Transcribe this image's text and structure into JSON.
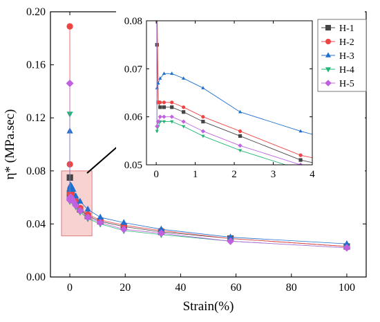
{
  "chart_data": [
    {
      "type": "line",
      "xlabel": "Strain(%)",
      "ylabel": "η* (MPa.sec)",
      "xlim": [
        -7,
        107
      ],
      "ylim": [
        0.0,
        0.2
      ],
      "x_ticks": [
        0,
        20,
        40,
        60,
        80,
        100
      ],
      "x_tick_labels": [
        "0",
        "20",
        "40",
        "60",
        "80",
        "100"
      ],
      "y_ticks": [
        0.0,
        0.04,
        0.08,
        0.12,
        0.16,
        0.2
      ],
      "y_tick_labels": [
        "0.00",
        "0.04",
        "0.08",
        "0.12",
        "0.16",
        "0.20"
      ],
      "grid": false,
      "series": [
        {
          "name": "H-1",
          "color": "#444444",
          "marker": "square",
          "points": [
            [
              0.02,
              0.075
            ],
            [
              0.05,
              0.063
            ],
            [
              0.1,
              0.062
            ],
            [
              0.2,
              0.062
            ],
            [
              0.4,
              0.062
            ],
            [
              0.7,
              0.061
            ],
            [
              1.2,
              0.059
            ],
            [
              2.15,
              0.056
            ],
            [
              3.7,
              0.051
            ],
            [
              6.5,
              0.046
            ],
            [
              11,
              0.042
            ],
            [
              19.5,
              0.038
            ],
            [
              33,
              0.034
            ],
            [
              58,
              0.029
            ],
            [
              100,
              0.023
            ]
          ]
        },
        {
          "name": "H-2",
          "color": "#ef4444",
          "marker": "circle",
          "points": [
            [
              0.0,
              0.189
            ],
            [
              0.02,
              0.085
            ],
            [
              0.05,
              0.063
            ],
            [
              0.1,
              0.063
            ],
            [
              0.2,
              0.063
            ],
            [
              0.4,
              0.063
            ],
            [
              0.7,
              0.062
            ],
            [
              1.2,
              0.06
            ],
            [
              2.15,
              0.057
            ],
            [
              3.7,
              0.052
            ],
            [
              6.5,
              0.047
            ],
            [
              11,
              0.043
            ],
            [
              19.5,
              0.039
            ],
            [
              33,
              0.035
            ],
            [
              58,
              0.029
            ],
            [
              100,
              0.023
            ]
          ]
        },
        {
          "name": "H-3",
          "color": "#1f6fcf",
          "marker": "triangle-up",
          "points": [
            [
              0.0,
              0.11
            ],
            [
              0.02,
              0.066
            ],
            [
              0.05,
              0.067
            ],
            [
              0.1,
              0.068
            ],
            [
              0.2,
              0.069
            ],
            [
              0.4,
              0.069
            ],
            [
              0.7,
              0.068
            ],
            [
              1.2,
              0.066
            ],
            [
              2.15,
              0.061
            ],
            [
              3.7,
              0.057
            ],
            [
              6.5,
              0.051
            ],
            [
              11,
              0.045
            ],
            [
              19.5,
              0.041
            ],
            [
              33,
              0.036
            ],
            [
              58,
              0.03
            ],
            [
              100,
              0.025
            ]
          ]
        },
        {
          "name": "H-4",
          "color": "#22b573",
          "marker": "triangle-down",
          "points": [
            [
              0.0,
              0.123
            ],
            [
              0.02,
              0.057
            ],
            [
              0.05,
              0.058
            ],
            [
              0.1,
              0.059
            ],
            [
              0.2,
              0.059
            ],
            [
              0.4,
              0.059
            ],
            [
              0.7,
              0.058
            ],
            [
              1.2,
              0.056
            ],
            [
              2.15,
              0.053
            ],
            [
              3.7,
              0.049
            ],
            [
              6.5,
              0.044
            ],
            [
              11,
              0.04
            ],
            [
              19.5,
              0.035
            ],
            [
              33,
              0.032
            ],
            [
              58,
              0.027
            ],
            [
              100,
              0.022
            ]
          ]
        },
        {
          "name": "H-5",
          "color": "#c061e0",
          "marker": "diamond",
          "points": [
            [
              0.0,
              0.146
            ],
            [
              0.02,
              0.058
            ],
            [
              0.05,
              0.059
            ],
            [
              0.1,
              0.06
            ],
            [
              0.2,
              0.06
            ],
            [
              0.4,
              0.06
            ],
            [
              0.7,
              0.059
            ],
            [
              1.2,
              0.057
            ],
            [
              2.15,
              0.054
            ],
            [
              3.7,
              0.05
            ],
            [
              6.5,
              0.045
            ],
            [
              11,
              0.041
            ],
            [
              19.5,
              0.036
            ],
            [
              33,
              0.033
            ],
            [
              58,
              0.027
            ],
            [
              100,
              0.022
            ]
          ]
        }
      ],
      "annotation": {
        "type": "highlight-rect",
        "x_range": [
          -3,
          8
        ],
        "y_range": [
          0.031,
          0.08
        ],
        "fill": "#f7c9c9",
        "stroke": "#e07a7a"
      }
    },
    {
      "type": "line",
      "role": "inset",
      "xlim": [
        -0.25,
        4
      ],
      "ylim": [
        0.05,
        0.08
      ],
      "x_ticks": [
        0,
        1,
        2,
        3,
        4
      ],
      "x_tick_labels": [
        "0",
        "1",
        "2",
        "3",
        "4"
      ],
      "y_ticks": [
        0.05,
        0.06,
        0.07,
        0.08
      ],
      "y_tick_labels": [
        "0.05",
        "0.06",
        "0.07",
        "0.08"
      ],
      "legend": [
        "H-1",
        "H-2",
        "H-3",
        "H-4",
        "H-5"
      ],
      "legend_position": "top-right",
      "grid": false
    }
  ]
}
